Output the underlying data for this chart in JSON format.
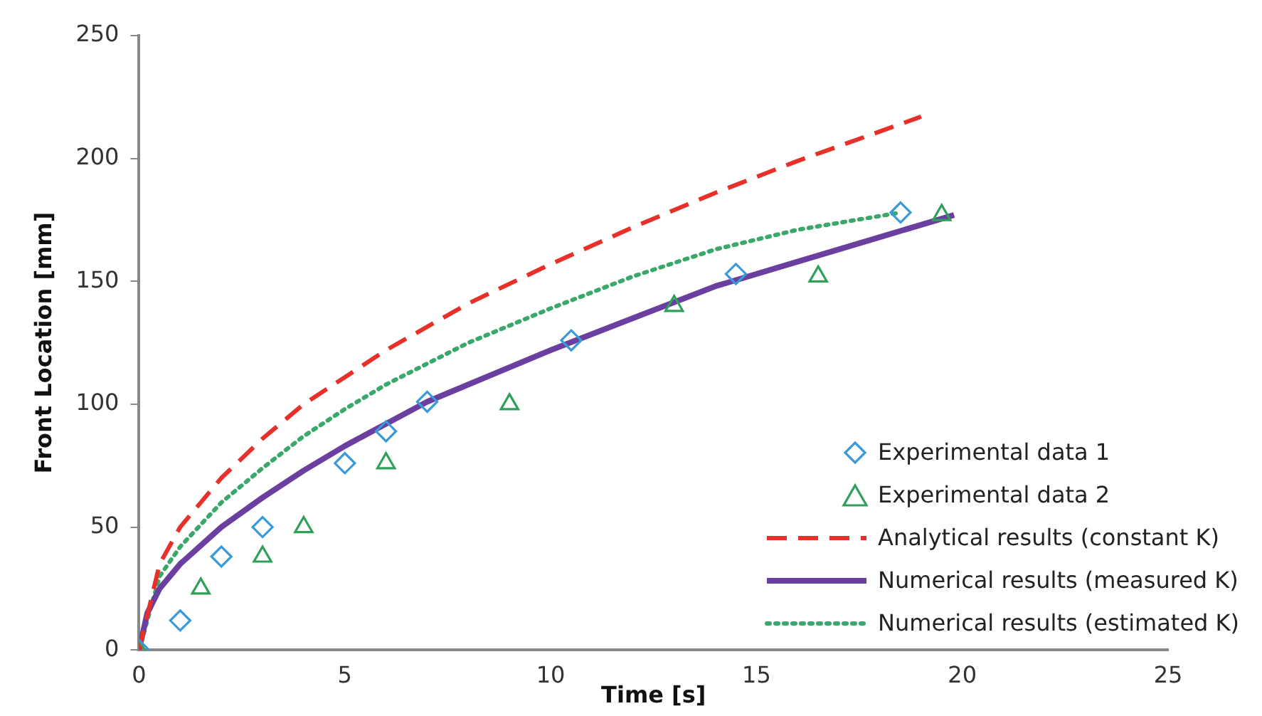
{
  "chart_data": {
    "type": "scatter",
    "xlabel": "Time [s]",
    "ylabel": "Front Location [mm]",
    "xlim": [
      0,
      25
    ],
    "xticks": [
      0,
      5,
      10,
      15,
      20,
      25
    ],
    "ylim": [
      0,
      250
    ],
    "yticks": [
      0,
      50,
      100,
      150,
      200,
      250
    ],
    "grid": false,
    "legend": "bottom right",
    "series": [
      {
        "name": "Experimental data 1",
        "marker": "diamond",
        "color": "#3a9ad9",
        "x": [
          0,
          1,
          2,
          3,
          5,
          6,
          7,
          10.5,
          14.5,
          18.5
        ],
        "values": [
          0,
          12,
          38,
          50,
          76,
          89,
          101,
          126,
          153,
          178
        ]
      },
      {
        "name": "Experimental data 2",
        "marker": "triangle",
        "color": "#2ea05a",
        "x": [
          0,
          1.5,
          3,
          4,
          6,
          9,
          13,
          16.5,
          19.5
        ],
        "values": [
          0,
          25,
          38,
          50,
          76,
          100,
          140,
          152,
          177
        ]
      },
      {
        "name": "Analytical results (constant K)",
        "type": "line",
        "marker": "none",
        "line_style": "dashed",
        "color": "#e8302a",
        "x": [
          0,
          0.5,
          1,
          2,
          3,
          4,
          5,
          6,
          8,
          10,
          12,
          14,
          16,
          19
        ],
        "values": [
          0,
          35,
          50,
          70,
          86,
          100,
          111,
          122,
          141,
          157,
          172,
          186,
          199,
          217
        ]
      },
      {
        "name": "Numerical results (measured K)",
        "type": "line",
        "marker": "none",
        "line_style": "solid",
        "color": "#6b3fa0",
        "x": [
          0,
          0.2,
          0.5,
          1,
          2,
          3,
          4,
          5,
          6,
          7,
          8,
          10,
          12,
          14,
          16,
          18,
          19.8
        ],
        "values": [
          0,
          15,
          25,
          35,
          50,
          62,
          73,
          83,
          92,
          101,
          108,
          122,
          135,
          148,
          158,
          168,
          177
        ]
      },
      {
        "name": "Numerical results (estimated K)",
        "type": "line",
        "marker": "none",
        "line_style": "dotted",
        "color": "#3aa86b",
        "x": [
          0,
          0.5,
          1,
          2,
          3,
          4,
          5,
          6,
          8,
          10,
          12,
          14,
          16,
          18.5
        ],
        "values": [
          0,
          30,
          42,
          60,
          74,
          87,
          98,
          108,
          125,
          139,
          152,
          163,
          171,
          178
        ]
      }
    ]
  }
}
